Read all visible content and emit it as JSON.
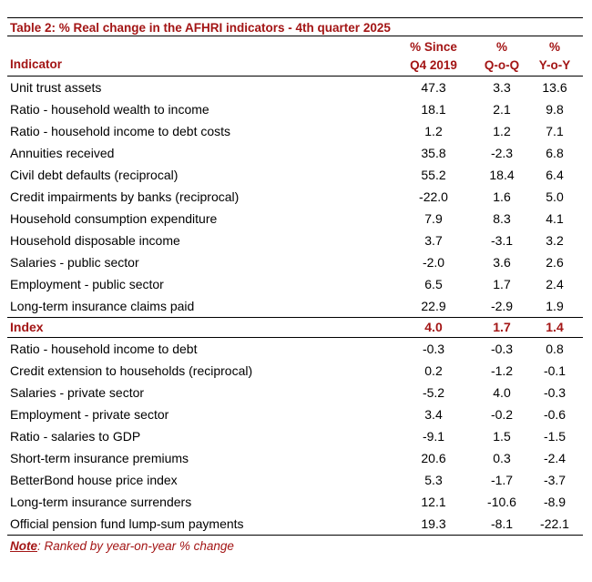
{
  "table": {
    "title": "Table 2: % Real change in the AFHRI indicators - 4th quarter 2025",
    "header": {
      "indicator": "Indicator",
      "col1_line1": "% Since",
      "col1_line2": "Q4 2019",
      "col2_line1": "%",
      "col2_line2": "Q-o-Q",
      "col3_line1": "%",
      "col3_line2": "Y-o-Y"
    },
    "rows_top": [
      {
        "name": "Unit trust assets",
        "since": "47.3",
        "qoq": "3.3",
        "yoy": "13.6"
      },
      {
        "name": "Ratio - household wealth to income",
        "since": "18.1",
        "qoq": "2.1",
        "yoy": "9.8"
      },
      {
        "name": "Ratio - household income to debt costs",
        "since": "1.2",
        "qoq": "1.2",
        "yoy": "7.1"
      },
      {
        "name": "Annuities received",
        "since": "35.8",
        "qoq": "-2.3",
        "yoy": "6.8"
      },
      {
        "name": "Civil debt defaults (reciprocal)",
        "since": "55.2",
        "qoq": "18.4",
        "yoy": "6.4"
      },
      {
        "name": "Credit impairments by banks (reciprocal)",
        "since": "-22.0",
        "qoq": "1.6",
        "yoy": "5.0"
      },
      {
        "name": "Household consumption expenditure",
        "since": "7.9",
        "qoq": "8.3",
        "yoy": "4.1"
      },
      {
        "name": "Household disposable income",
        "since": "3.7",
        "qoq": "-3.1",
        "yoy": "3.2"
      },
      {
        "name": "Salaries - public sector",
        "since": "-2.0",
        "qoq": "3.6",
        "yoy": "2.6"
      },
      {
        "name": "Employment - public sector",
        "since": "6.5",
        "qoq": "1.7",
        "yoy": "2.4"
      },
      {
        "name": "Long-term insurance claims paid",
        "since": "22.9",
        "qoq": "-2.9",
        "yoy": "1.9"
      }
    ],
    "index_row": {
      "name": "Index",
      "since": "4.0",
      "qoq": "1.7",
      "yoy": "1.4"
    },
    "rows_bottom": [
      {
        "name": "Ratio - household income to debt",
        "since": "-0.3",
        "qoq": "-0.3",
        "yoy": "0.8"
      },
      {
        "name": "Credit extension to households (reciprocal)",
        "since": "0.2",
        "qoq": "-1.2",
        "yoy": "-0.1"
      },
      {
        "name": "Salaries - private sector",
        "since": "-5.2",
        "qoq": "4.0",
        "yoy": "-0.3"
      },
      {
        "name": "Employment - private sector",
        "since": "3.4",
        "qoq": "-0.2",
        "yoy": "-0.6"
      },
      {
        "name": "Ratio - salaries to GDP",
        "since": "-9.1",
        "qoq": "1.5",
        "yoy": "-1.5"
      },
      {
        "name": "Short-term insurance premiums",
        "since": "20.6",
        "qoq": "0.3",
        "yoy": "-2.4"
      },
      {
        "name": "BetterBond house price index",
        "since": "5.3",
        "qoq": "-1.7",
        "yoy": "-3.7"
      },
      {
        "name": "Long-term insurance surrenders",
        "since": "12.1",
        "qoq": "-10.6",
        "yoy": "-8.9"
      },
      {
        "name": "Official pension fund lump-sum payments",
        "since": "19.3",
        "qoq": "-8.1",
        "yoy": "-22.1"
      }
    ],
    "note_label": "Note",
    "note_text": ": Ranked by year-on-year % change"
  }
}
